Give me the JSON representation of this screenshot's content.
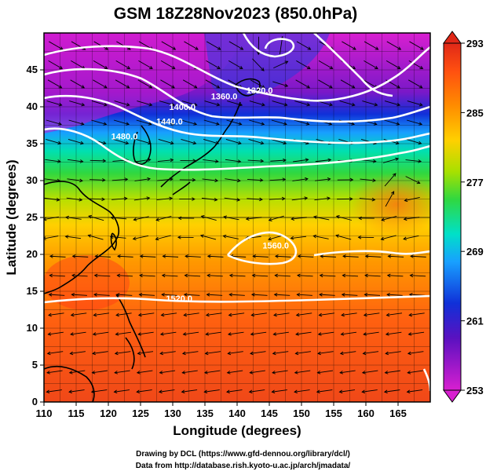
{
  "title": "GSM 18Z28Nov2023 (850.0hPa)",
  "x_axis": {
    "label": "Longitude (degrees)",
    "ticks": [
      "110",
      "115",
      "120",
      "125",
      "130",
      "135",
      "140",
      "145",
      "150",
      "155",
      "160",
      "165"
    ],
    "range": [
      110,
      170
    ]
  },
  "y_axis": {
    "label": "Latitude  (degrees)",
    "ticks": [
      "0",
      "5",
      "10",
      "15",
      "20",
      "25",
      "30",
      "35",
      "40",
      "45"
    ],
    "range": [
      0,
      50
    ]
  },
  "colorbar": {
    "labels": [
      "293",
      "285",
      "277",
      "269",
      "261",
      "253"
    ],
    "min": 253,
    "max": 293,
    "colors": [
      "#d81fd0",
      "#5a11c0",
      "#1030d8",
      "#18a0ff",
      "#00e0c8",
      "#30d840",
      "#a8e000",
      "#ffd000",
      "#ff8c00",
      "#ff5010",
      "#e02818"
    ]
  },
  "contour_labels": [
    {
      "text": "1320.0",
      "lon": 143.5,
      "lat": 41.8
    },
    {
      "text": "1360.0",
      "lon": 138.0,
      "lat": 41.0
    },
    {
      "text": "1400.0",
      "lon": 131.5,
      "lat": 39.6
    },
    {
      "text": "1440.0",
      "lon": 129.5,
      "lat": 37.6
    },
    {
      "text": "1480.0",
      "lon": 122.5,
      "lat": 35.6
    },
    {
      "text": "1560.0",
      "lon": 146.0,
      "lat": 20.8
    },
    {
      "text": "1520.0",
      "lon": 131.0,
      "lat": 13.6
    }
  ],
  "credits": [
    "Drawing by DCL (https://www.gfd-dennou.org/library/dcl/)",
    "Data from http://database.rish.kyoto-u.ac.jp/arch/jmadata/"
  ]
}
